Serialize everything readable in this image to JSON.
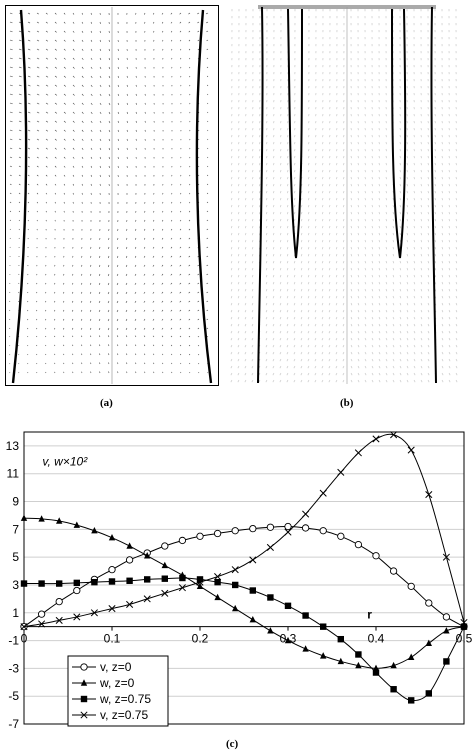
{
  "panels": {
    "a": {
      "caption": "(a)"
    },
    "b": {
      "caption": "(b)"
    },
    "c": {
      "caption": "(c)"
    }
  },
  "colors": {
    "line": "#000000",
    "grid": "#cfcfcf",
    "frame": "#000000",
    "light_arrows": "#c8c8c8"
  },
  "chart_data": {
    "type": "line",
    "title": "",
    "annotation_ylabel": "v, w×10²",
    "annotation_r": "r",
    "xlim": [
      0,
      0.5
    ],
    "ylim": [
      -7,
      14
    ],
    "xticks": [
      0,
      0.1,
      0.2,
      0.3,
      0.4,
      0.5
    ],
    "xtick_labels": [
      "0",
      "0.1",
      "0.2",
      "0.3",
      "0.4",
      "0.5"
    ],
    "yticks": [
      13,
      11,
      9,
      7,
      5,
      3,
      1,
      -1,
      -3,
      -5,
      -7
    ],
    "ytick_labels": [
      "13",
      "11",
      "9",
      "7",
      "5",
      "3",
      "1",
      "-1",
      "-3",
      "-5",
      "-7"
    ],
    "grid": "horizontal",
    "legend_position": "bottom-left",
    "series": [
      {
        "name": "v, z=0",
        "marker": "circle",
        "x": [
          0,
          0.02,
          0.04,
          0.06,
          0.08,
          0.1,
          0.12,
          0.14,
          0.16,
          0.18,
          0.2,
          0.22,
          0.24,
          0.26,
          0.28,
          0.3,
          0.32,
          0.34,
          0.36,
          0.38,
          0.4,
          0.42,
          0.44,
          0.46,
          0.48,
          0.5
        ],
        "y": [
          0,
          0.9,
          1.8,
          2.6,
          3.4,
          4.1,
          4.8,
          5.3,
          5.8,
          6.2,
          6.5,
          6.7,
          6.9,
          7.05,
          7.15,
          7.2,
          7.1,
          6.9,
          6.5,
          5.9,
          5.1,
          4.0,
          2.9,
          1.7,
          0.7,
          0
        ]
      },
      {
        "name": "w, z=0",
        "marker": "triangle",
        "x": [
          0,
          0.02,
          0.04,
          0.06,
          0.08,
          0.1,
          0.12,
          0.14,
          0.16,
          0.18,
          0.2,
          0.22,
          0.24,
          0.26,
          0.28,
          0.3,
          0.32,
          0.34,
          0.36,
          0.38,
          0.4,
          0.42,
          0.44,
          0.46,
          0.48,
          0.5
        ],
        "y": [
          7.8,
          7.75,
          7.6,
          7.3,
          6.9,
          6.4,
          5.8,
          5.1,
          4.4,
          3.7,
          2.9,
          2.1,
          1.3,
          0.5,
          -0.3,
          -1.0,
          -1.6,
          -2.1,
          -2.5,
          -2.8,
          -3.0,
          -2.8,
          -2.2,
          -1.2,
          -0.3,
          0
        ]
      },
      {
        "name": "w, z=0.75",
        "marker": "square",
        "x": [
          0,
          0.02,
          0.04,
          0.06,
          0.08,
          0.1,
          0.12,
          0.14,
          0.16,
          0.18,
          0.2,
          0.22,
          0.24,
          0.26,
          0.28,
          0.3,
          0.32,
          0.34,
          0.36,
          0.38,
          0.4,
          0.42,
          0.44,
          0.46,
          0.48,
          0.5
        ],
        "y": [
          3.1,
          3.1,
          3.1,
          3.15,
          3.2,
          3.25,
          3.3,
          3.4,
          3.45,
          3.5,
          3.4,
          3.2,
          3.0,
          2.6,
          2.1,
          1.5,
          0.8,
          0.0,
          -0.9,
          -2.0,
          -3.3,
          -4.5,
          -5.3,
          -4.8,
          -2.5,
          0
        ]
      },
      {
        "name": "v, z=0.75",
        "marker": "x",
        "x": [
          0,
          0.02,
          0.04,
          0.06,
          0.08,
          0.1,
          0.12,
          0.14,
          0.16,
          0.18,
          0.2,
          0.22,
          0.24,
          0.26,
          0.28,
          0.3,
          0.32,
          0.34,
          0.36,
          0.38,
          0.4,
          0.42,
          0.44,
          0.46,
          0.48,
          0.5
        ],
        "y": [
          0,
          0.2,
          0.45,
          0.7,
          1.0,
          1.3,
          1.6,
          2.0,
          2.4,
          2.8,
          3.2,
          3.6,
          4.1,
          4.8,
          5.7,
          6.8,
          8.1,
          9.6,
          11.1,
          12.5,
          13.5,
          13.8,
          12.7,
          9.5,
          5.0,
          0.3
        ]
      }
    ]
  }
}
